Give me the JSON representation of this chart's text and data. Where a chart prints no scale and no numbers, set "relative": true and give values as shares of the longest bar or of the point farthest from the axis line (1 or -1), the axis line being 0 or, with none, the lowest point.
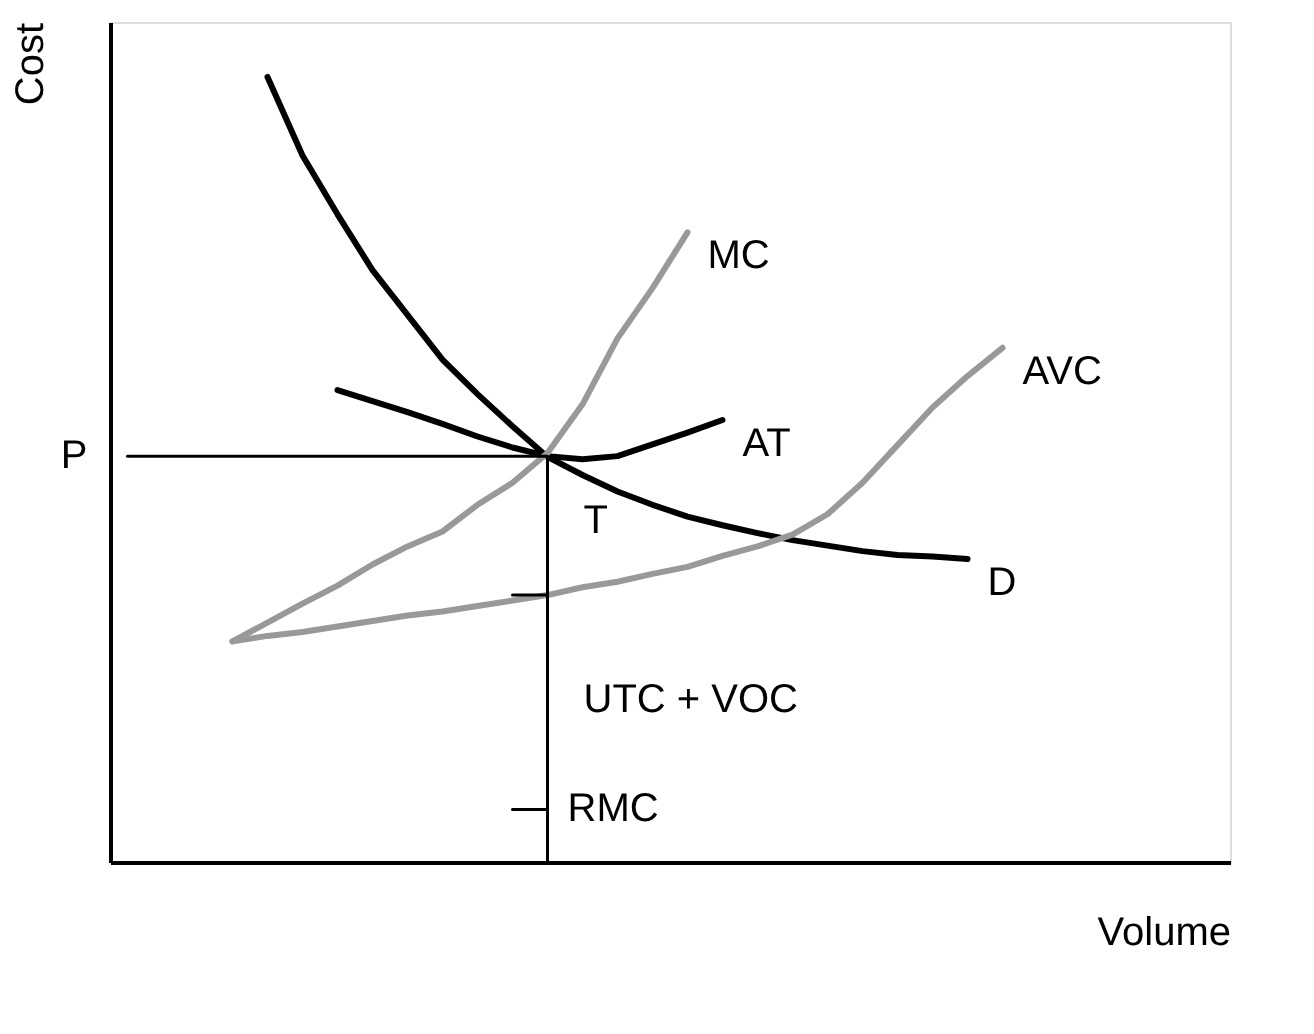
{
  "chart_data": {
    "type": "line",
    "relative": true,
    "xlabel": "Volume",
    "ylabel": "Cost",
    "tick_labels": false,
    "grid": false,
    "categories": [
      null,
      null,
      null,
      null,
      null,
      null,
      null,
      null,
      null,
      null,
      null,
      null,
      null,
      null,
      null,
      null,
      null,
      null,
      null,
      null,
      null,
      null,
      null,
      null,
      null,
      null,
      null,
      null,
      null,
      null,
      null,
      null
    ],
    "series": [
      {
        "name": "D",
        "color": "#000000",
        "values": [
          null,
          null,
          null,
          null,
          1.0,
          0.9,
          0.825,
          0.754,
          0.697,
          0.64,
          0.596,
          0.555,
          0.516,
          0.493,
          0.472,
          0.455,
          0.44,
          0.429,
          0.419,
          0.41,
          0.403,
          0.396,
          0.391,
          0.389,
          0.386,
          null,
          null,
          null,
          null,
          null,
          null,
          null
        ]
      },
      {
        "name": "AT",
        "color": "#000000",
        "values": [
          null,
          null,
          null,
          null,
          null,
          null,
          0.601,
          0.587,
          0.573,
          0.558,
          0.542,
          0.528,
          0.517,
          0.513,
          0.517,
          0.532,
          0.547,
          0.563,
          null,
          null,
          null,
          null,
          null,
          null,
          null,
          null,
          null,
          null,
          null,
          null,
          null,
          null
        ]
      },
      {
        "name": "MC",
        "color": "#999999",
        "values": [
          null,
          null,
          null,
          0.281,
          0.305,
          0.329,
          0.352,
          0.379,
          0.402,
          0.421,
          0.455,
          0.483,
          0.521,
          0.583,
          0.667,
          0.731,
          0.802,
          null,
          null,
          null,
          null,
          null,
          null,
          null,
          null,
          null,
          null,
          null,
          null,
          null,
          null,
          null
        ]
      },
      {
        "name": "AVC",
        "color": "#999999",
        "values": [
          null,
          null,
          null,
          0.281,
          0.288,
          0.293,
          0.3,
          0.307,
          0.314,
          0.319,
          0.326,
          0.333,
          0.34,
          0.35,
          0.357,
          0.367,
          0.376,
          0.39,
          0.402,
          0.417,
          0.443,
          0.483,
          0.531,
          0.579,
          0.619,
          0.655,
          null,
          null,
          null,
          null,
          null,
          null
        ]
      },
      {
        "name": "P",
        "color": "#000000",
        "values": [
          0.517,
          0.517,
          0.517,
          0.517,
          0.517,
          0.517,
          0.517,
          0.517,
          0.517,
          0.517,
          0.517,
          0.517,
          0.517,
          null,
          null,
          null,
          null,
          null,
          null,
          null,
          null,
          null,
          null,
          null,
          null,
          null,
          null,
          null,
          null,
          null,
          null,
          null
        ]
      },
      {
        "color": "#000000",
        "values": [
          null,
          null,
          null,
          null,
          null,
          null,
          null,
          null,
          null,
          null,
          null,
          0.34,
          0.34,
          null,
          null,
          null,
          null,
          null,
          null,
          null,
          null,
          null,
          null,
          null,
          null,
          null,
          null,
          null,
          null,
          null,
          null,
          null
        ]
      },
      {
        "name": "RMC",
        "color": "#000000",
        "values": [
          null,
          null,
          null,
          null,
          null,
          null,
          null,
          null,
          null,
          null,
          null,
          0.067,
          0.067,
          null,
          null,
          null,
          null,
          null,
          null,
          null,
          null,
          null,
          null,
          null,
          null,
          null,
          null,
          null,
          null,
          null,
          null,
          null
        ]
      }
    ],
    "legend": false,
    "annotations": [
      "T",
      "UTC + VOC"
    ]
  }
}
